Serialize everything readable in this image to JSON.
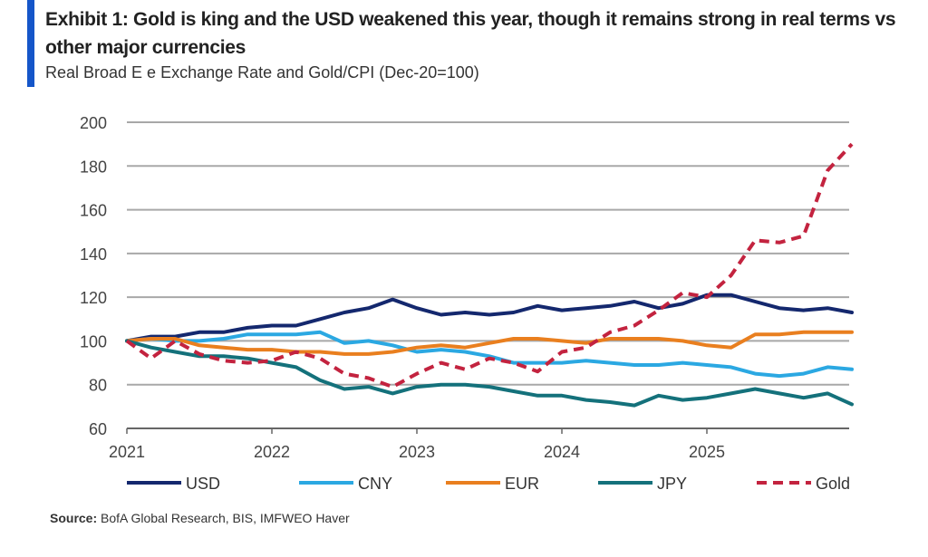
{
  "header": {
    "title": "Exhibit 1: Gold is king and the USD weakened this year, though it remains strong in real terms vs other major currencies",
    "subtitle": "Real Broad E      e Exchange Rate and Gold/CPI (Dec-20=100)"
  },
  "footer": {
    "source_label": "Source:",
    "source_text": "BofA Global Research, BIS, IMFWEO Haver"
  },
  "chart_data": {
    "type": "line",
    "title": "",
    "xlabel": "",
    "ylabel": "",
    "ylim": [
      60,
      200
    ],
    "yticks": [
      60,
      80,
      100,
      120,
      140,
      160,
      180,
      200
    ],
    "xticks": [
      "2021",
      "2022",
      "2023",
      "2024",
      "2025"
    ],
    "grid": "horizontal",
    "legend": "bottom",
    "x": [
      "2020-12",
      "2021-02",
      "2021-04",
      "2021-06",
      "2021-08",
      "2021-10",
      "2021-12",
      "2022-02",
      "2022-04",
      "2022-06",
      "2022-08",
      "2022-10",
      "2022-12",
      "2023-02",
      "2023-04",
      "2023-06",
      "2023-08",
      "2023-10",
      "2023-12",
      "2024-02",
      "2024-04",
      "2024-06",
      "2024-08",
      "2024-10",
      "2024-12",
      "2025-02",
      "2025-04",
      "2025-06",
      "2025-08",
      "2025-10",
      "2025-12"
    ],
    "series": [
      {
        "name": "USD",
        "color": "#14286e",
        "dashed": false,
        "values": [
          100,
          102,
          102,
          104,
          104,
          106,
          107,
          107,
          110,
          113,
          115,
          119,
          115,
          112,
          113,
          112,
          113,
          116,
          114,
          115,
          116,
          118,
          115,
          117,
          121,
          121,
          118,
          115,
          114,
          115,
          113
        ]
      },
      {
        "name": "CNY",
        "color": "#2ba8e2",
        "dashed": false,
        "values": [
          100,
          101,
          100,
          100,
          101,
          103,
          103,
          103,
          104,
          99,
          100,
          98,
          95,
          96,
          95,
          93,
          90,
          90,
          90,
          91,
          90,
          89,
          89,
          90,
          89,
          88,
          85,
          84,
          85,
          88,
          87
        ]
      },
      {
        "name": "EUR",
        "color": "#e97f1f",
        "dashed": false,
        "values": [
          100,
          101,
          101,
          98,
          97,
          96,
          96,
          95,
          95,
          94,
          94,
          95,
          97,
          98,
          97,
          99,
          101,
          101,
          100,
          99,
          101,
          101,
          101,
          100,
          98,
          97,
          103,
          103,
          104,
          104,
          104
        ]
      },
      {
        "name": "JPY",
        "color": "#14717b",
        "dashed": false,
        "values": [
          100,
          97,
          95,
          93,
          93,
          92,
          90,
          88,
          82,
          78,
          79,
          76,
          79,
          80,
          80,
          79,
          77,
          75,
          75,
          73,
          72,
          70.5,
          75,
          73,
          74,
          76,
          78,
          76,
          74,
          76,
          71
        ]
      },
      {
        "name": "Gold",
        "color": "#c3233f",
        "dashed": true,
        "values": [
          100,
          92,
          100,
          94,
          91,
          90,
          91,
          95,
          92,
          85,
          83,
          79,
          85,
          90,
          87,
          92,
          90,
          86,
          95,
          97,
          104,
          107,
          114,
          122,
          120,
          130,
          146,
          145,
          148,
          178,
          190
        ]
      }
    ]
  }
}
